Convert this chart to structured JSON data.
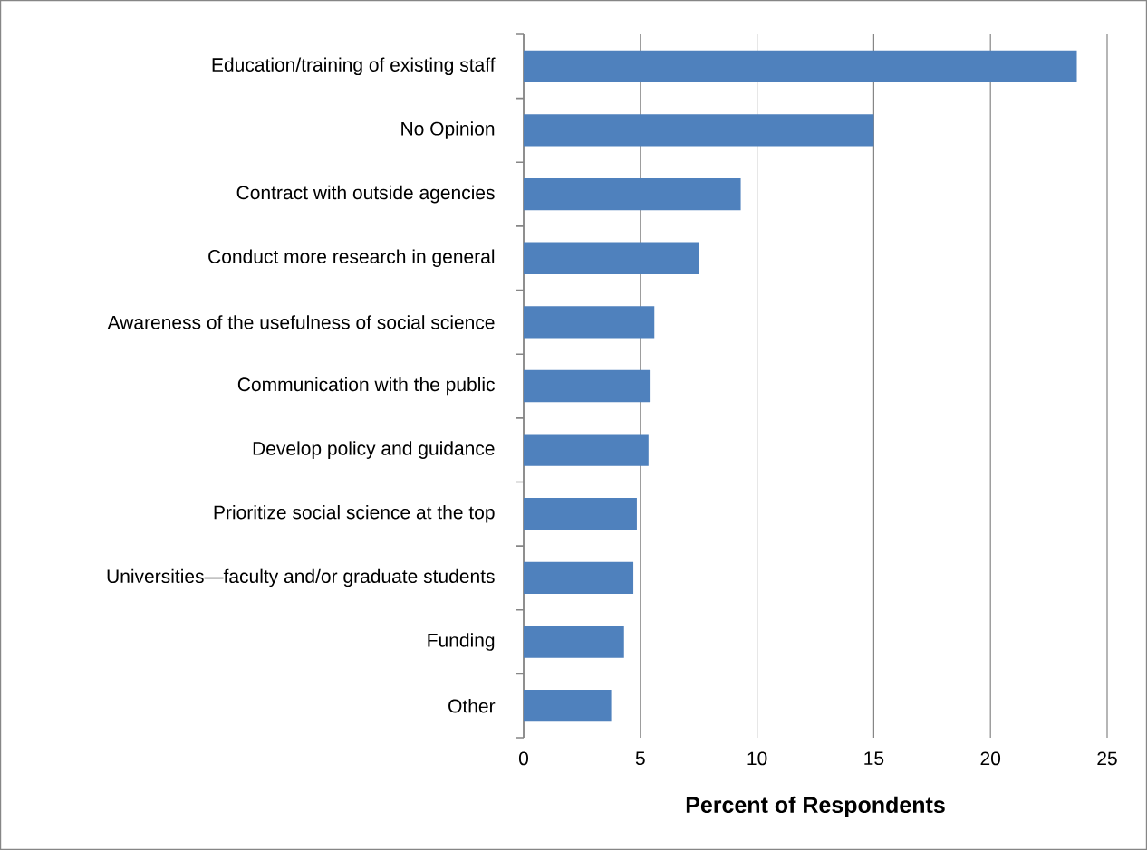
{
  "chart_data": {
    "type": "bar",
    "orientation": "horizontal",
    "xlabel": "Percent of Respondents",
    "categories": [
      "Education/training of existing staff",
      "No Opinion",
      "Contract with outside agencies",
      "Conduct more research in general",
      "Awareness of the usefulness of social science",
      "Communication with the public",
      "Develop policy and guidance",
      "Prioritize social science at the top",
      "Universities—faculty and/or graduate students",
      "Funding",
      "Other"
    ],
    "values": [
      23.7,
      15.0,
      9.3,
      7.5,
      5.6,
      5.4,
      5.35,
      4.85,
      4.7,
      4.3,
      3.75
    ],
    "color": "#4f81bd",
    "xlim": [
      0,
      25
    ],
    "xticks": [
      0,
      5,
      10,
      15,
      20,
      25
    ],
    "grid": "x"
  }
}
